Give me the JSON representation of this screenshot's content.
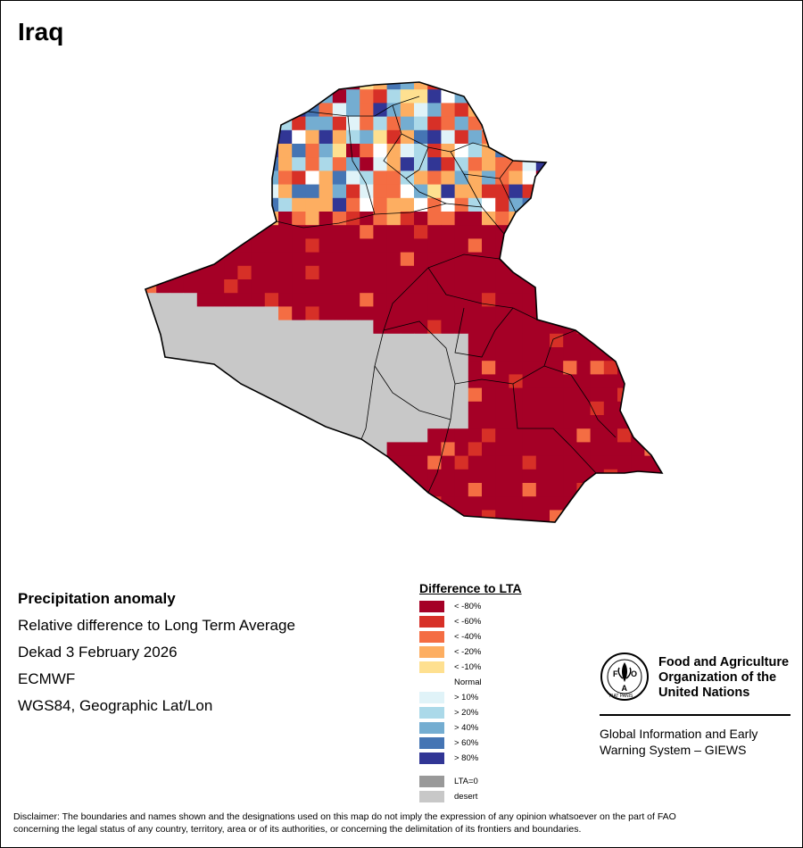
{
  "title": "Iraq",
  "info": {
    "heading": "Precipitation anomaly",
    "line1": "Relative difference to Long Term Average",
    "line2": "Dekad 3 February 2026",
    "line3": "ECMWF",
    "line4": "WGS84, Geographic Lat/Lon"
  },
  "legend": {
    "title": "Difference to LTA",
    "items": [
      {
        "label": "< -80%",
        "color": "#a50026"
      },
      {
        "label": "< -60%",
        "color": "#d73027"
      },
      {
        "label": "< -40%",
        "color": "#f46d43"
      },
      {
        "label": "< -20%",
        "color": "#fdae61"
      },
      {
        "label": "< -10%",
        "color": "#fee090"
      },
      {
        "label": "Normal",
        "color": "#ffffff"
      },
      {
        "label": "> 10%",
        "color": "#e0f3f8"
      },
      {
        "label": "> 20%",
        "color": "#abd9e9"
      },
      {
        "label": "> 40%",
        "color": "#74add1"
      },
      {
        "label": "> 60%",
        "color": "#4575b4"
      },
      {
        "label": "> 80%",
        "color": "#313695"
      },
      {
        "label": "LTA=0",
        "color": "#999999"
      },
      {
        "label": "desert",
        "color": "#c8c8c8"
      }
    ]
  },
  "fao": {
    "logo_text": "FAO",
    "logo_motto": "FIAT PANIS",
    "name_line1": "Food and Agriculture",
    "name_line2": "Organization of the",
    "name_line3": "United Nations",
    "giews_line1": "Global Information and Early",
    "giews_line2": "Warning System – GIEWS"
  },
  "disclaimer_line1": "Disclaimer: The boundaries and names shown and the designations used on this map do not imply the expression of any opinion whatsoever on the part of FAO",
  "disclaimer_line2": "concerning the legal status of any country, territory, area or of its authorities, or concerning the delimitation of its frontiers and boundaries."
}
